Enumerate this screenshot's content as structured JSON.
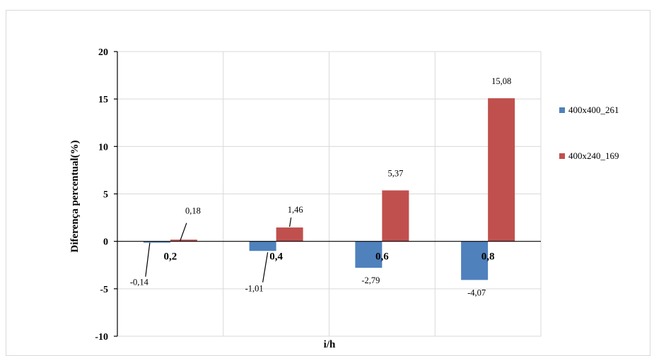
{
  "chart_data": {
    "type": "bar",
    "categories": [
      "0,2",
      "0,4",
      "0,6",
      "0,8"
    ],
    "series": [
      {
        "name": "400x400_261",
        "values": [
          -0.14,
          -1.01,
          -2.79,
          -4.07
        ],
        "labels": [
          "-0,14",
          "-1,01",
          "-2,79",
          "-4,07"
        ],
        "color": "#4f81bd"
      },
      {
        "name": "400x240_169",
        "values": [
          0.18,
          1.46,
          5.37,
          15.08
        ],
        "labels": [
          "0,18",
          "1,46",
          "5,37",
          "15,08"
        ],
        "color": "#c0504d"
      }
    ],
    "xlabel": "i/h",
    "ylabel": "Diferença percentual(%)",
    "ylim": [
      -10,
      20
    ],
    "yticks": [
      20,
      15,
      10,
      5,
      0,
      -5,
      -10
    ],
    "ytick_labels": [
      "20",
      "15",
      "10",
      "5",
      "0",
      "-5",
      "-10"
    ],
    "grid": true,
    "legend_position": "right"
  }
}
